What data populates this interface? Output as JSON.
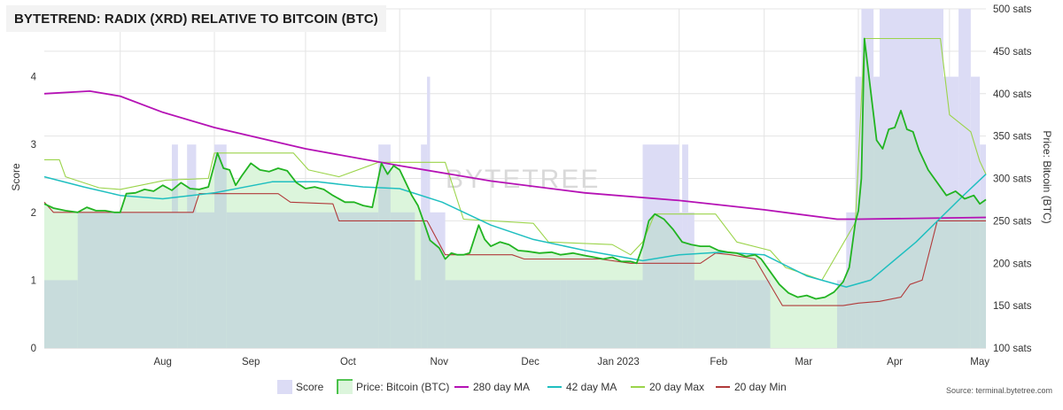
{
  "title": "BYTETREND: RADIX (XRD) RELATIVE TO BITCOIN (BTC)",
  "watermark": "BYTETREE",
  "source": "Source: terminal.bytetree.com",
  "colors": {
    "score": "#dcdcf5",
    "price_line": "#22b422",
    "price_fill": "#dcf5dc",
    "overlap": "#c8dcdc",
    "ma280": "#b512b5",
    "ma42": "#1fbfc0",
    "max20": "#9bd44a",
    "min20": "#b13a3a"
  },
  "chart_data": {
    "type": "line",
    "title": "BYTETREND: RADIX (XRD) RELATIVE TO BITCOIN (BTC)",
    "x_range": [
      "2022-07-07",
      "2023-05-13"
    ],
    "x_tick_labels": [
      "Aug",
      "Sep",
      "Oct",
      "Nov",
      "Dec",
      "Jan 2023",
      "Feb",
      "Mar",
      "Apr",
      "May"
    ],
    "y_left": {
      "label": "Score",
      "range": [
        0,
        5
      ],
      "ticks": [
        "0",
        "1",
        "2",
        "3",
        "4"
      ]
    },
    "y_right": {
      "label": "Price: Bitcoin (BTC)",
      "range": [
        100,
        500
      ],
      "ticks": [
        "100 sats",
        "150 sats",
        "200 sats",
        "250 sats",
        "300 sats",
        "350 sats",
        "400 sats",
        "450 sats",
        "500 sats"
      ]
    },
    "legend": [
      {
        "key": "score",
        "label": "Score"
      },
      {
        "key": "price",
        "label": "Price: Bitcoin (BTC)"
      },
      {
        "key": "ma280",
        "label": "280 day MA"
      },
      {
        "key": "ma42",
        "label": "42 day MA"
      },
      {
        "key": "max20",
        "label": "20 day Max"
      },
      {
        "key": "min20",
        "label": "20 day Min"
      }
    ],
    "series": [
      {
        "name": "Score",
        "axis": "left",
        "style": "step-area",
        "points": [
          [
            "2022-07-07",
            1
          ],
          [
            "2022-07-18",
            2
          ],
          [
            "2022-08-18",
            3
          ],
          [
            "2022-08-20",
            2
          ],
          [
            "2022-08-23",
            3
          ],
          [
            "2022-08-26",
            2
          ],
          [
            "2022-09-01",
            3
          ],
          [
            "2022-09-05",
            2
          ],
          [
            "2022-10-25",
            3
          ],
          [
            "2022-10-29",
            2
          ],
          [
            "2022-11-06",
            1
          ],
          [
            "2022-11-08",
            3
          ],
          [
            "2022-11-10",
            4
          ],
          [
            "2022-11-11",
            2
          ],
          [
            "2022-11-16",
            1
          ],
          [
            "2022-12-24",
            1
          ],
          [
            "2022-12-26",
            1
          ],
          [
            "2023-01-18",
            1
          ],
          [
            "2023-01-20",
            3
          ],
          [
            "2023-02-01",
            2
          ],
          [
            "2023-02-02",
            3
          ],
          [
            "2023-02-04",
            2
          ],
          [
            "2023-02-06",
            1
          ],
          [
            "2023-02-20",
            1
          ],
          [
            "2023-03-03",
            0
          ],
          [
            "2023-03-25",
            1
          ],
          [
            "2023-03-28",
            2
          ],
          [
            "2023-03-31",
            4
          ],
          [
            "2023-04-02",
            5
          ],
          [
            "2023-04-06",
            4
          ],
          [
            "2023-04-08",
            5
          ],
          [
            "2023-04-29",
            4
          ],
          [
            "2023-05-04",
            5
          ],
          [
            "2023-05-08",
            4
          ],
          [
            "2023-05-11",
            3
          ],
          [
            "2023-05-13",
            3
          ]
        ]
      },
      {
        "name": "Price: Bitcoin (BTC)",
        "axis": "right",
        "points": [
          [
            "2022-07-07",
            270
          ],
          [
            "2022-07-10",
            265
          ],
          [
            "2022-07-14",
            262
          ],
          [
            "2022-07-18",
            260
          ],
          [
            "2022-07-21",
            266
          ],
          [
            "2022-07-24",
            262
          ],
          [
            "2022-07-27",
            262
          ],
          [
            "2022-07-30",
            260
          ],
          [
            "2022-08-01",
            260
          ],
          [
            "2022-08-03",
            282
          ],
          [
            "2022-08-06",
            283
          ],
          [
            "2022-08-09",
            287
          ],
          [
            "2022-08-12",
            285
          ],
          [
            "2022-08-15",
            292
          ],
          [
            "2022-08-18",
            286
          ],
          [
            "2022-08-21",
            295
          ],
          [
            "2022-08-24",
            288
          ],
          [
            "2022-08-27",
            287
          ],
          [
            "2022-08-30",
            290
          ],
          [
            "2022-09-02",
            330
          ],
          [
            "2022-09-04",
            312
          ],
          [
            "2022-09-06",
            310
          ],
          [
            "2022-09-08",
            292
          ],
          [
            "2022-09-10",
            303
          ],
          [
            "2022-09-13",
            318
          ],
          [
            "2022-09-16",
            310
          ],
          [
            "2022-09-19",
            308
          ],
          [
            "2022-09-22",
            312
          ],
          [
            "2022-09-25",
            309
          ],
          [
            "2022-09-28",
            295
          ],
          [
            "2022-10-01",
            288
          ],
          [
            "2022-10-04",
            290
          ],
          [
            "2022-10-07",
            287
          ],
          [
            "2022-10-10",
            280
          ],
          [
            "2022-10-14",
            272
          ],
          [
            "2022-10-17",
            272
          ],
          [
            "2022-10-20",
            268
          ],
          [
            "2022-10-23",
            266
          ],
          [
            "2022-10-26",
            318
          ],
          [
            "2022-10-28",
            305
          ],
          [
            "2022-10-30",
            315
          ],
          [
            "2022-11-01",
            310
          ],
          [
            "2022-11-03",
            295
          ],
          [
            "2022-11-05",
            280
          ],
          [
            "2022-11-07",
            268
          ],
          [
            "2022-11-09",
            248
          ],
          [
            "2022-11-11",
            227
          ],
          [
            "2022-11-14",
            218
          ],
          [
            "2022-11-16",
            205
          ],
          [
            "2022-11-18",
            212
          ],
          [
            "2022-11-20",
            210
          ],
          [
            "2022-11-22",
            210
          ],
          [
            "2022-11-24",
            212
          ],
          [
            "2022-11-27",
            245
          ],
          [
            "2022-11-29",
            228
          ],
          [
            "2022-12-01",
            220
          ],
          [
            "2022-12-04",
            225
          ],
          [
            "2022-12-07",
            222
          ],
          [
            "2022-12-10",
            215
          ],
          [
            "2022-12-13",
            214
          ],
          [
            "2022-12-17",
            212
          ],
          [
            "2022-12-21",
            213
          ],
          [
            "2022-12-24",
            210
          ],
          [
            "2022-12-28",
            212
          ],
          [
            "2023-01-01",
            209
          ],
          [
            "2023-01-04",
            207
          ],
          [
            "2023-01-07",
            205
          ],
          [
            "2023-01-10",
            207
          ],
          [
            "2023-01-13",
            202
          ],
          [
            "2023-01-16",
            202
          ],
          [
            "2023-01-18",
            200
          ],
          [
            "2023-01-20",
            220
          ],
          [
            "2023-01-22",
            250
          ],
          [
            "2023-01-24",
            258
          ],
          [
            "2023-01-27",
            252
          ],
          [
            "2023-01-30",
            240
          ],
          [
            "2023-02-02",
            225
          ],
          [
            "2023-02-05",
            222
          ],
          [
            "2023-02-08",
            220
          ],
          [
            "2023-02-11",
            220
          ],
          [
            "2023-02-14",
            215
          ],
          [
            "2023-02-17",
            213
          ],
          [
            "2023-02-20",
            212
          ],
          [
            "2023-02-23",
            208
          ],
          [
            "2023-02-26",
            210
          ],
          [
            "2023-02-28",
            205
          ],
          [
            "2023-03-03",
            190
          ],
          [
            "2023-03-06",
            175
          ],
          [
            "2023-03-09",
            165
          ],
          [
            "2023-03-12",
            160
          ],
          [
            "2023-03-15",
            162
          ],
          [
            "2023-03-18",
            158
          ],
          [
            "2023-03-21",
            160
          ],
          [
            "2023-03-24",
            166
          ],
          [
            "2023-03-27",
            178
          ],
          [
            "2023-03-29",
            195
          ],
          [
            "2023-03-31",
            248
          ],
          [
            "2023-04-01",
            262
          ],
          [
            "2023-04-02",
            300
          ],
          [
            "2023-04-03",
            465
          ],
          [
            "2023-04-05",
            405
          ],
          [
            "2023-04-07",
            345
          ],
          [
            "2023-04-09",
            335
          ],
          [
            "2023-04-11",
            358
          ],
          [
            "2023-04-13",
            360
          ],
          [
            "2023-04-15",
            380
          ],
          [
            "2023-04-17",
            358
          ],
          [
            "2023-04-19",
            355
          ],
          [
            "2023-04-21",
            333
          ],
          [
            "2023-04-24",
            310
          ],
          [
            "2023-04-27",
            295
          ],
          [
            "2023-04-30",
            280
          ],
          [
            "2023-05-03",
            285
          ],
          [
            "2023-05-06",
            276
          ],
          [
            "2023-05-09",
            280
          ],
          [
            "2023-05-11",
            270
          ],
          [
            "2023-05-13",
            275
          ]
        ]
      },
      {
        "name": "280 day MA",
        "axis": "right",
        "points": [
          [
            "2022-07-07",
            400
          ],
          [
            "2022-07-22",
            403
          ],
          [
            "2022-08-01",
            397
          ],
          [
            "2022-08-15",
            378
          ],
          [
            "2022-09-01",
            360
          ],
          [
            "2022-10-01",
            335
          ],
          [
            "2022-11-01",
            315
          ],
          [
            "2022-12-01",
            297
          ],
          [
            "2023-01-01",
            283
          ],
          [
            "2023-02-01",
            274
          ],
          [
            "2023-03-01",
            263
          ],
          [
            "2023-03-25",
            252
          ],
          [
            "2023-04-01",
            252
          ],
          [
            "2023-05-13",
            254
          ]
        ]
      },
      {
        "name": "42 day MA",
        "axis": "right",
        "points": [
          [
            "2022-07-07",
            302
          ],
          [
            "2022-07-20",
            290
          ],
          [
            "2022-08-01",
            280
          ],
          [
            "2022-08-15",
            276
          ],
          [
            "2022-09-01",
            283
          ],
          [
            "2022-09-20",
            296
          ],
          [
            "2022-10-05",
            296
          ],
          [
            "2022-10-20",
            290
          ],
          [
            "2022-11-01",
            288
          ],
          [
            "2022-11-15",
            272
          ],
          [
            "2022-12-01",
            245
          ],
          [
            "2022-12-15",
            228
          ],
          [
            "2023-01-01",
            215
          ],
          [
            "2023-01-20",
            203
          ],
          [
            "2023-02-01",
            210
          ],
          [
            "2023-02-15",
            213
          ],
          [
            "2023-03-01",
            210
          ],
          [
            "2023-03-15",
            185
          ],
          [
            "2023-03-28",
            172
          ],
          [
            "2023-04-05",
            180
          ],
          [
            "2023-04-20",
            225
          ],
          [
            "2023-05-05",
            278
          ],
          [
            "2023-05-13",
            305
          ]
        ]
      },
      {
        "name": "20 day Max",
        "axis": "right",
        "points": [
          [
            "2022-07-07",
            322
          ],
          [
            "2022-07-12",
            322
          ],
          [
            "2022-07-14",
            302
          ],
          [
            "2022-07-25",
            289
          ],
          [
            "2022-08-01",
            287
          ],
          [
            "2022-08-16",
            298
          ],
          [
            "2022-08-30",
            300
          ],
          [
            "2022-09-01",
            330
          ],
          [
            "2022-09-27",
            330
          ],
          [
            "2022-10-02",
            310
          ],
          [
            "2022-10-12",
            302
          ],
          [
            "2022-10-25",
            319
          ],
          [
            "2022-11-16",
            319
          ],
          [
            "2022-11-22",
            252
          ],
          [
            "2022-12-15",
            247
          ],
          [
            "2022-12-20",
            225
          ],
          [
            "2023-01-10",
            222
          ],
          [
            "2023-01-16",
            210
          ],
          [
            "2023-01-20",
            225
          ],
          [
            "2023-01-24",
            258
          ],
          [
            "2023-02-13",
            258
          ],
          [
            "2023-02-20",
            225
          ],
          [
            "2023-03-03",
            215
          ],
          [
            "2023-03-08",
            195
          ],
          [
            "2023-03-20",
            180
          ],
          [
            "2023-03-31",
            248
          ],
          [
            "2023-04-03",
            465
          ],
          [
            "2023-04-28",
            465
          ],
          [
            "2023-05-01",
            375
          ],
          [
            "2023-05-08",
            355
          ],
          [
            "2023-05-11",
            320
          ],
          [
            "2023-05-13",
            305
          ]
        ]
      },
      {
        "name": "20 day Min",
        "axis": "right",
        "points": [
          [
            "2022-07-07",
            272
          ],
          [
            "2022-07-10",
            260
          ],
          [
            "2022-08-01",
            260
          ],
          [
            "2022-08-25",
            260
          ],
          [
            "2022-08-27",
            282
          ],
          [
            "2022-09-22",
            282
          ],
          [
            "2022-09-26",
            272
          ],
          [
            "2022-10-10",
            270
          ],
          [
            "2022-10-12",
            250
          ],
          [
            "2022-11-10",
            250
          ],
          [
            "2022-11-16",
            210
          ],
          [
            "2022-12-08",
            210
          ],
          [
            "2022-12-12",
            205
          ],
          [
            "2023-01-06",
            205
          ],
          [
            "2023-01-16",
            200
          ],
          [
            "2023-02-08",
            200
          ],
          [
            "2023-02-13",
            212
          ],
          [
            "2023-02-18",
            210
          ],
          [
            "2023-02-26",
            205
          ],
          [
            "2023-03-07",
            150
          ],
          [
            "2023-03-27",
            150
          ],
          [
            "2023-04-01",
            153
          ],
          [
            "2023-04-08",
            155
          ],
          [
            "2023-04-15",
            160
          ],
          [
            "2023-04-18",
            175
          ],
          [
            "2023-04-22",
            180
          ],
          [
            "2023-04-27",
            250
          ],
          [
            "2023-05-13",
            250
          ]
        ]
      }
    ]
  }
}
